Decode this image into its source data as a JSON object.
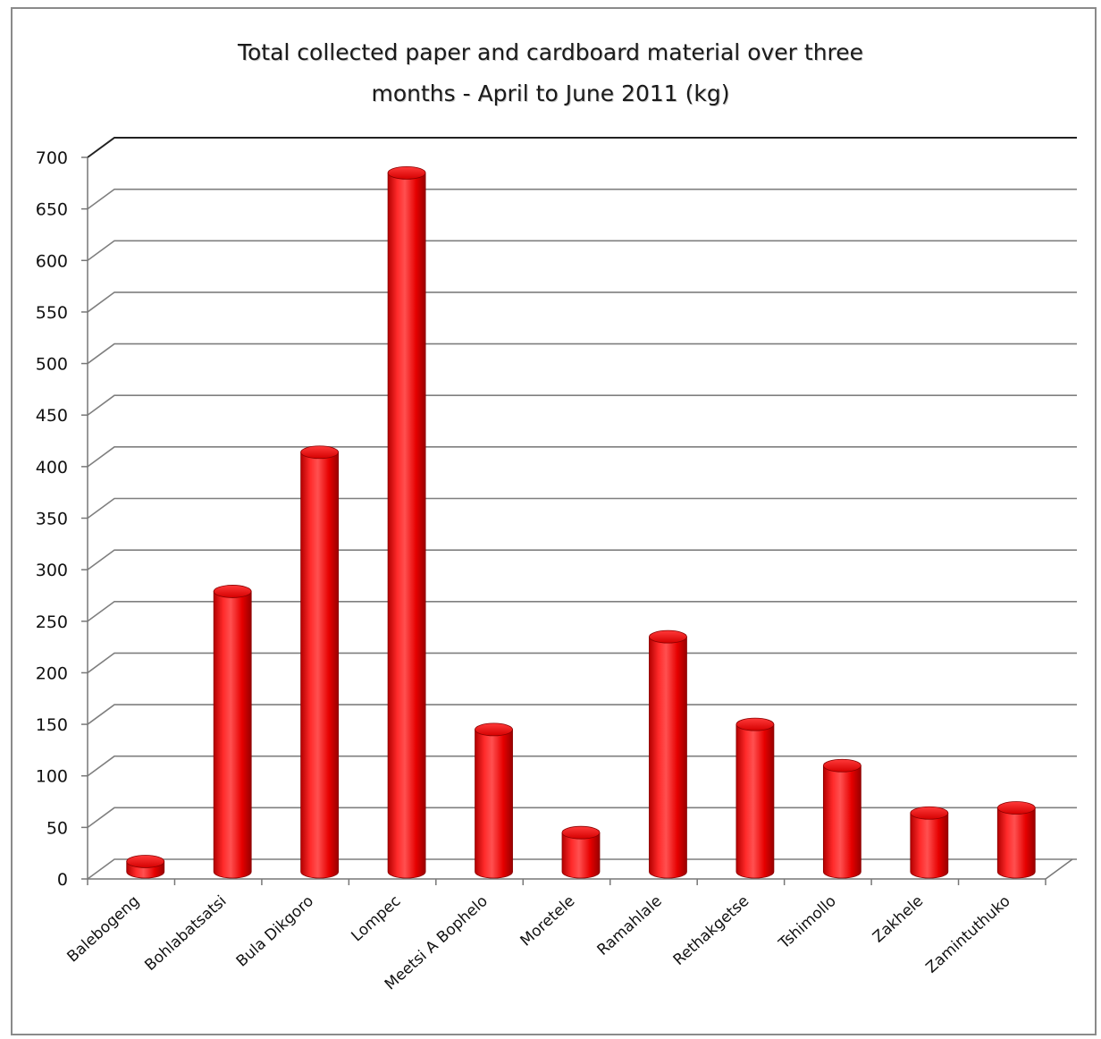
{
  "chart_data": {
    "type": "bar",
    "title": "Total collected paper and cardboard material over three months - April to June 2011 (kg)",
    "title_lines": [
      "Total collected paper and cardboard material over three",
      "months - April to June 2011 (kg)"
    ],
    "categories": [
      "Balebogeng",
      "Bohlabatsatsi",
      "Bula Dikgoro",
      "Lompec",
      "Meetsi A Bophelo",
      "Moretele",
      "Ramahlale",
      "Rethakgetse",
      "Tshimollo",
      "Zakhele",
      "Zamintuthuko"
    ],
    "values": [
      10,
      272,
      407,
      678,
      138,
      38,
      228,
      143,
      103,
      57,
      62
    ],
    "ylim": [
      0,
      700
    ],
    "yticks": [
      0,
      50,
      100,
      150,
      200,
      250,
      300,
      350,
      400,
      450,
      500,
      550,
      600,
      650,
      700
    ],
    "xlabel": "",
    "ylabel": "",
    "grid": true,
    "legend": "none",
    "bar_color": "#ff0000",
    "style": "3d-cylinder"
  }
}
